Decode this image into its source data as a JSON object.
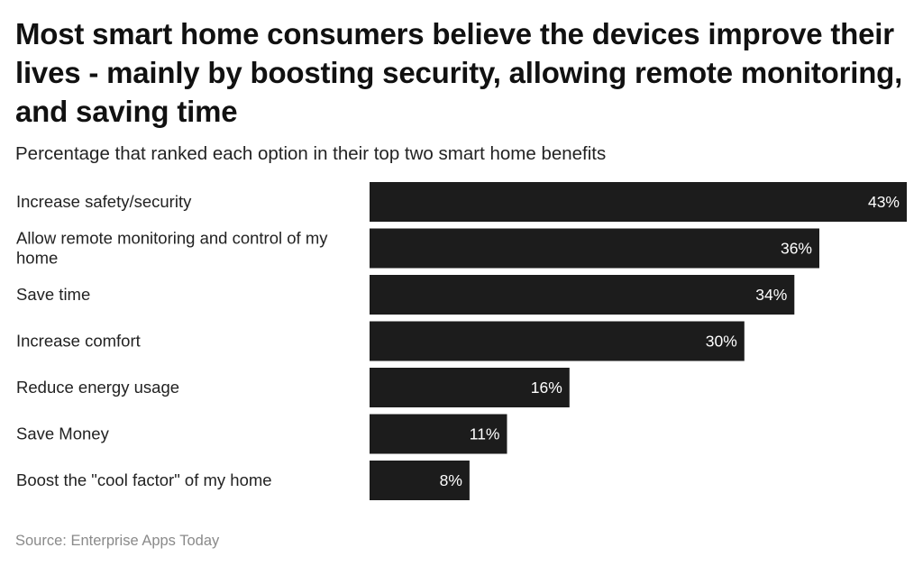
{
  "header": {
    "title": "Most smart home consumers believe the devices improve their lives - mainly by boosting security, allowing remote monitoring, and saving time",
    "subtitle": "Percentage that ranked each option in their top two smart home benefits"
  },
  "footer": {
    "source": "Source: Enterprise Apps Today"
  },
  "colors": {
    "bar": "#1c1c1c",
    "bar_label": "#ffffff",
    "category_label": "#222222"
  },
  "chart_data": {
    "type": "bar",
    "orientation": "horizontal",
    "title": "Most smart home consumers believe the devices improve their lives - mainly by boosting security, allowing remote monitoring, and saving time",
    "subtitle": "Percentage that ranked each option in their top two smart home benefits",
    "xlabel": "",
    "ylabel": "",
    "grid": false,
    "legend": "none",
    "unit": "%",
    "categories": [
      [
        "Increase safety/security"
      ],
      [
        "Allow remote monitoring and control of my",
        "home"
      ],
      [
        "Save time"
      ],
      [
        "Increase comfort"
      ],
      [
        "Reduce energy usage"
      ],
      [
        "Save Money"
      ],
      [
        "Boost the \"cool factor\" of my home"
      ]
    ],
    "values": [
      43,
      36,
      34,
      30,
      16,
      11,
      8
    ],
    "value_labels": [
      "43%",
      "36%",
      "34%",
      "30%",
      "16%",
      "11%",
      "8%"
    ],
    "xlim": [
      0,
      43
    ]
  }
}
